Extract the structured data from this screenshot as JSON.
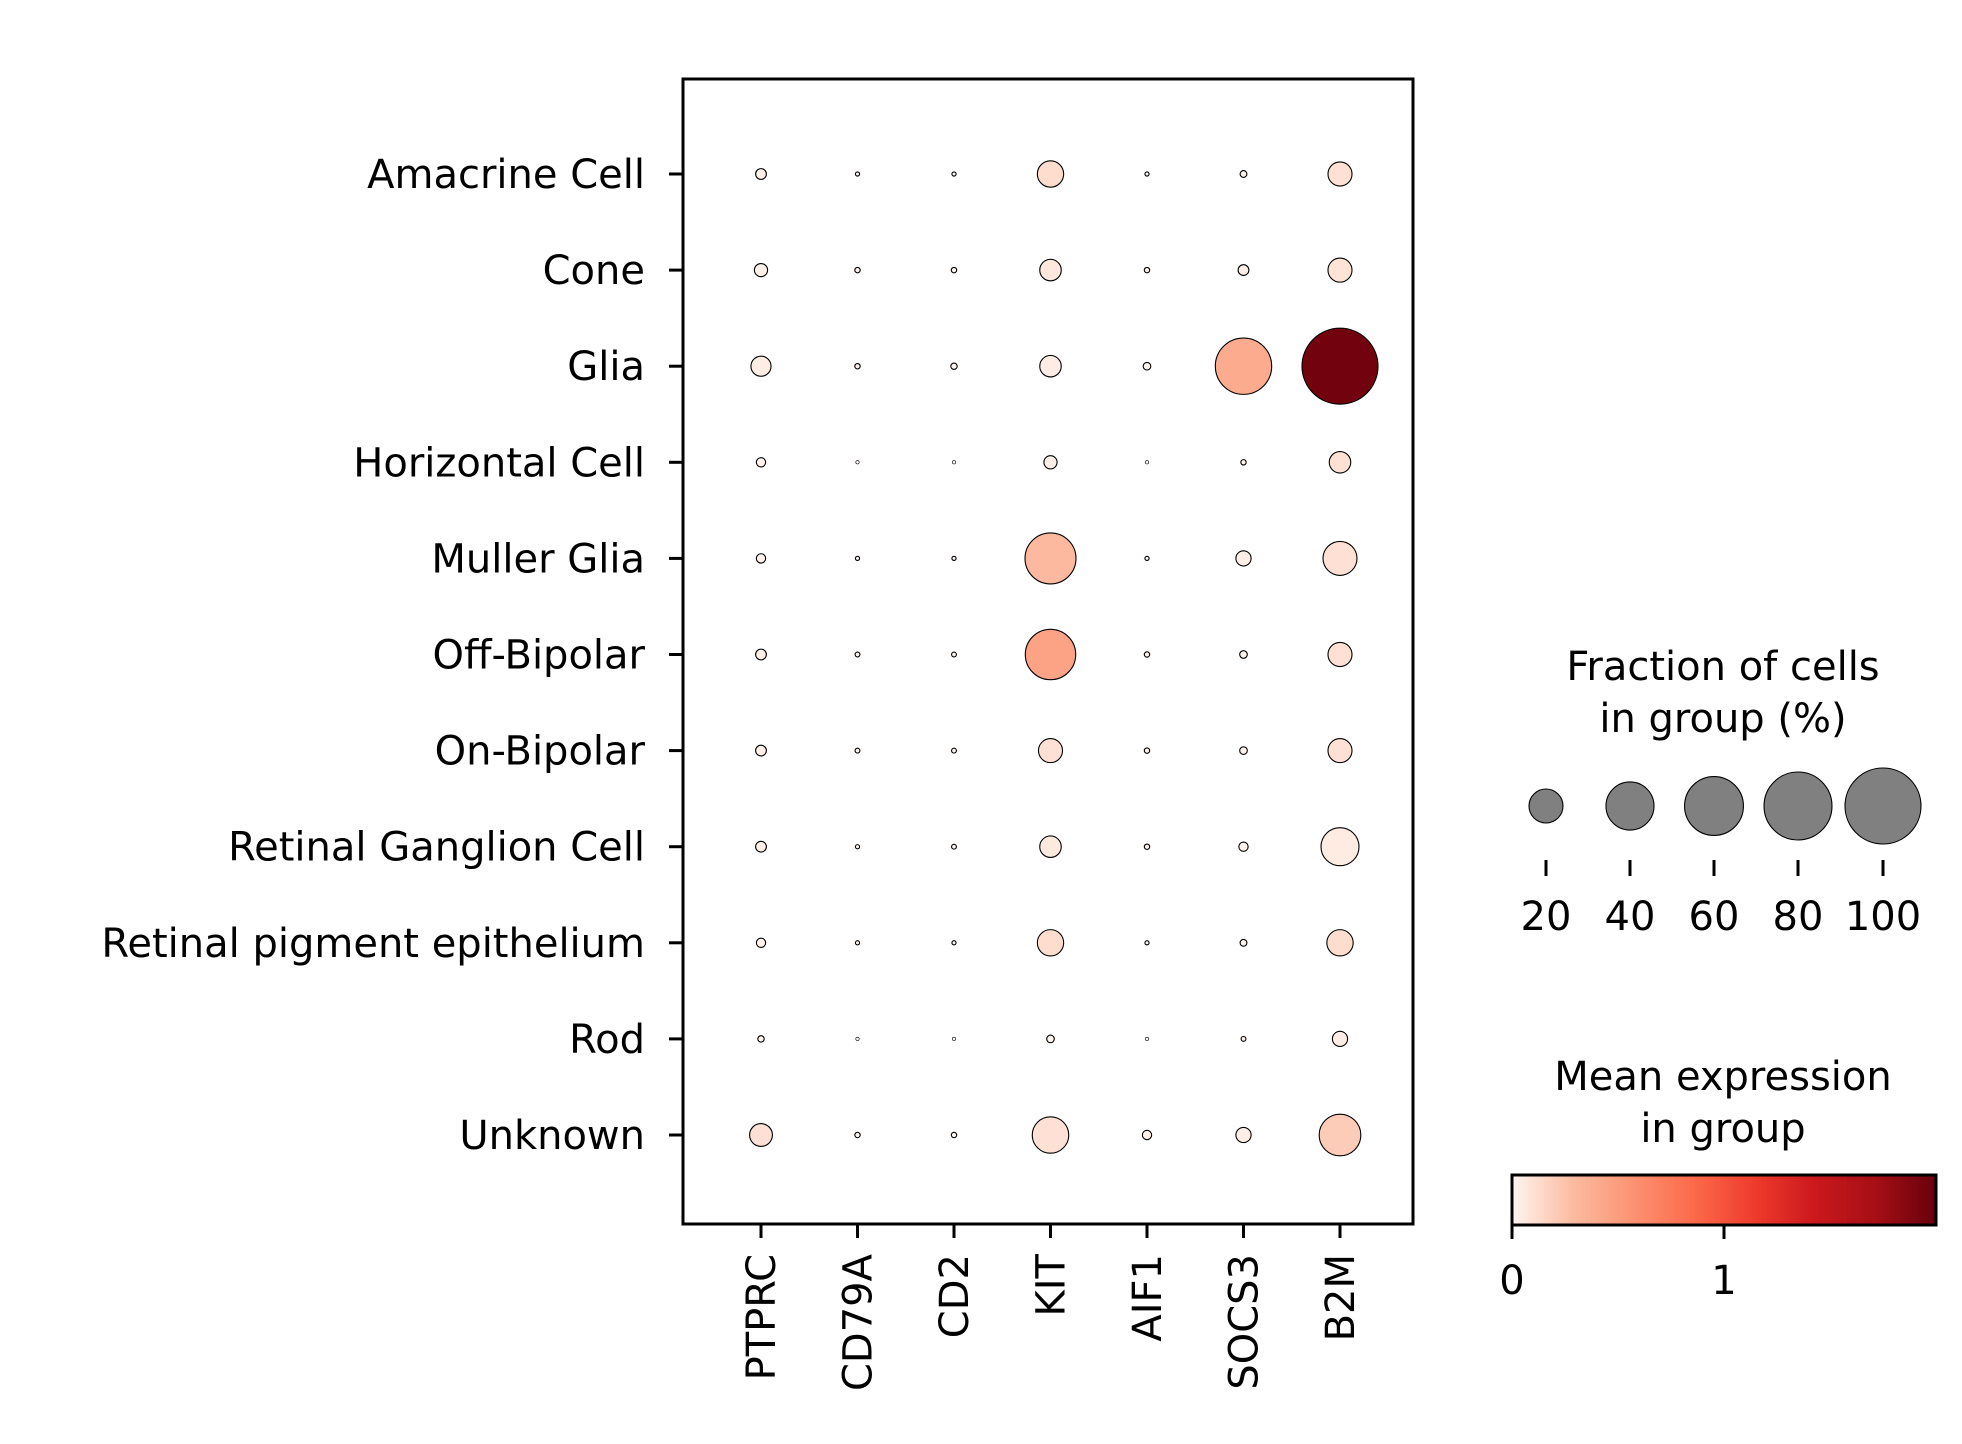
{
  "chart_data": {
    "type": "scatter",
    "subtype": "dotplot",
    "genes": [
      "PTPRC",
      "CD79A",
      "CD2",
      "KIT",
      "AIF1",
      "SOCS3",
      "B2M"
    ],
    "groups": [
      "Amacrine Cell",
      "Cone",
      "Glia",
      "Horizontal Cell",
      "Muller Glia",
      "Off-Bipolar",
      "On-Bipolar",
      "Retinal Ganglion Cell",
      "Retinal pigment epithelium",
      "Rod",
      "Unknown"
    ],
    "fraction_percent": [
      [
        2,
        0.3,
        0.3,
        12,
        0.3,
        0.8,
        10
      ],
      [
        3,
        0.5,
        0.5,
        8,
        0.5,
        2,
        10
      ],
      [
        7,
        0.5,
        0.7,
        8,
        1,
        55,
        100
      ],
      [
        1.5,
        0.2,
        0.2,
        3,
        0.2,
        0.5,
        8
      ],
      [
        1.5,
        0.3,
        0.3,
        45,
        0.3,
        4,
        20
      ],
      [
        2,
        0.4,
        0.4,
        44,
        0.5,
        1,
        10
      ],
      [
        2,
        0.4,
        0.4,
        10,
        0.5,
        1,
        10
      ],
      [
        2,
        0.3,
        0.4,
        8,
        0.5,
        1.5,
        25
      ],
      [
        1.5,
        0.3,
        0.3,
        12,
        0.3,
        0.8,
        12
      ],
      [
        0.7,
        0.2,
        0.2,
        1,
        0.2,
        0.4,
        4
      ],
      [
        9,
        0.5,
        0.5,
        23,
        1.5,
        4,
        30
      ]
    ],
    "mean_expression": [
      [
        0.02,
        0.0,
        0.0,
        0.12,
        0.0,
        0.0,
        0.1
      ],
      [
        0.02,
        0.0,
        0.0,
        0.07,
        0.0,
        0.02,
        0.09
      ],
      [
        0.04,
        0.0,
        0.0,
        0.04,
        0.0,
        0.4,
        1.95
      ],
      [
        0.01,
        0.0,
        0.0,
        0.03,
        0.0,
        0.0,
        0.1
      ],
      [
        0.01,
        0.0,
        0.0,
        0.3,
        0.0,
        0.03,
        0.1
      ],
      [
        0.02,
        0.0,
        0.0,
        0.45,
        0.0,
        0.01,
        0.1
      ],
      [
        0.02,
        0.0,
        0.0,
        0.1,
        0.0,
        0.01,
        0.1
      ],
      [
        0.02,
        0.0,
        0.0,
        0.06,
        0.0,
        0.01,
        0.05
      ],
      [
        0.01,
        0.0,
        0.0,
        0.12,
        0.0,
        0.0,
        0.12
      ],
      [
        0.0,
        0.0,
        0.0,
        0.01,
        0.0,
        0.0,
        0.04
      ],
      [
        0.1,
        0.0,
        0.0,
        0.1,
        0.02,
        0.03,
        0.2
      ]
    ],
    "size_legend": {
      "title_line1": "Fraction of cells",
      "title_line2": "in group (%)",
      "values": [
        20,
        40,
        60,
        80,
        100
      ],
      "labels": [
        "20",
        "40",
        "60",
        "80",
        "100"
      ],
      "dot_color": "#808080"
    },
    "color_legend": {
      "title_line1": "Mean expression",
      "title_line2": "in group",
      "range": [
        0,
        2
      ],
      "ticks": [
        0,
        1
      ],
      "tick_labels": [
        "0",
        "1"
      ],
      "colormap": "Reds",
      "colors": [
        "#fff5f0",
        "#fcbba1",
        "#fc9272",
        "#fb6a4a",
        "#ef3b2c",
        "#cb181d",
        "#a50f15",
        "#67000d"
      ]
    },
    "xlabel": "",
    "ylabel": "",
    "grid": false
  }
}
